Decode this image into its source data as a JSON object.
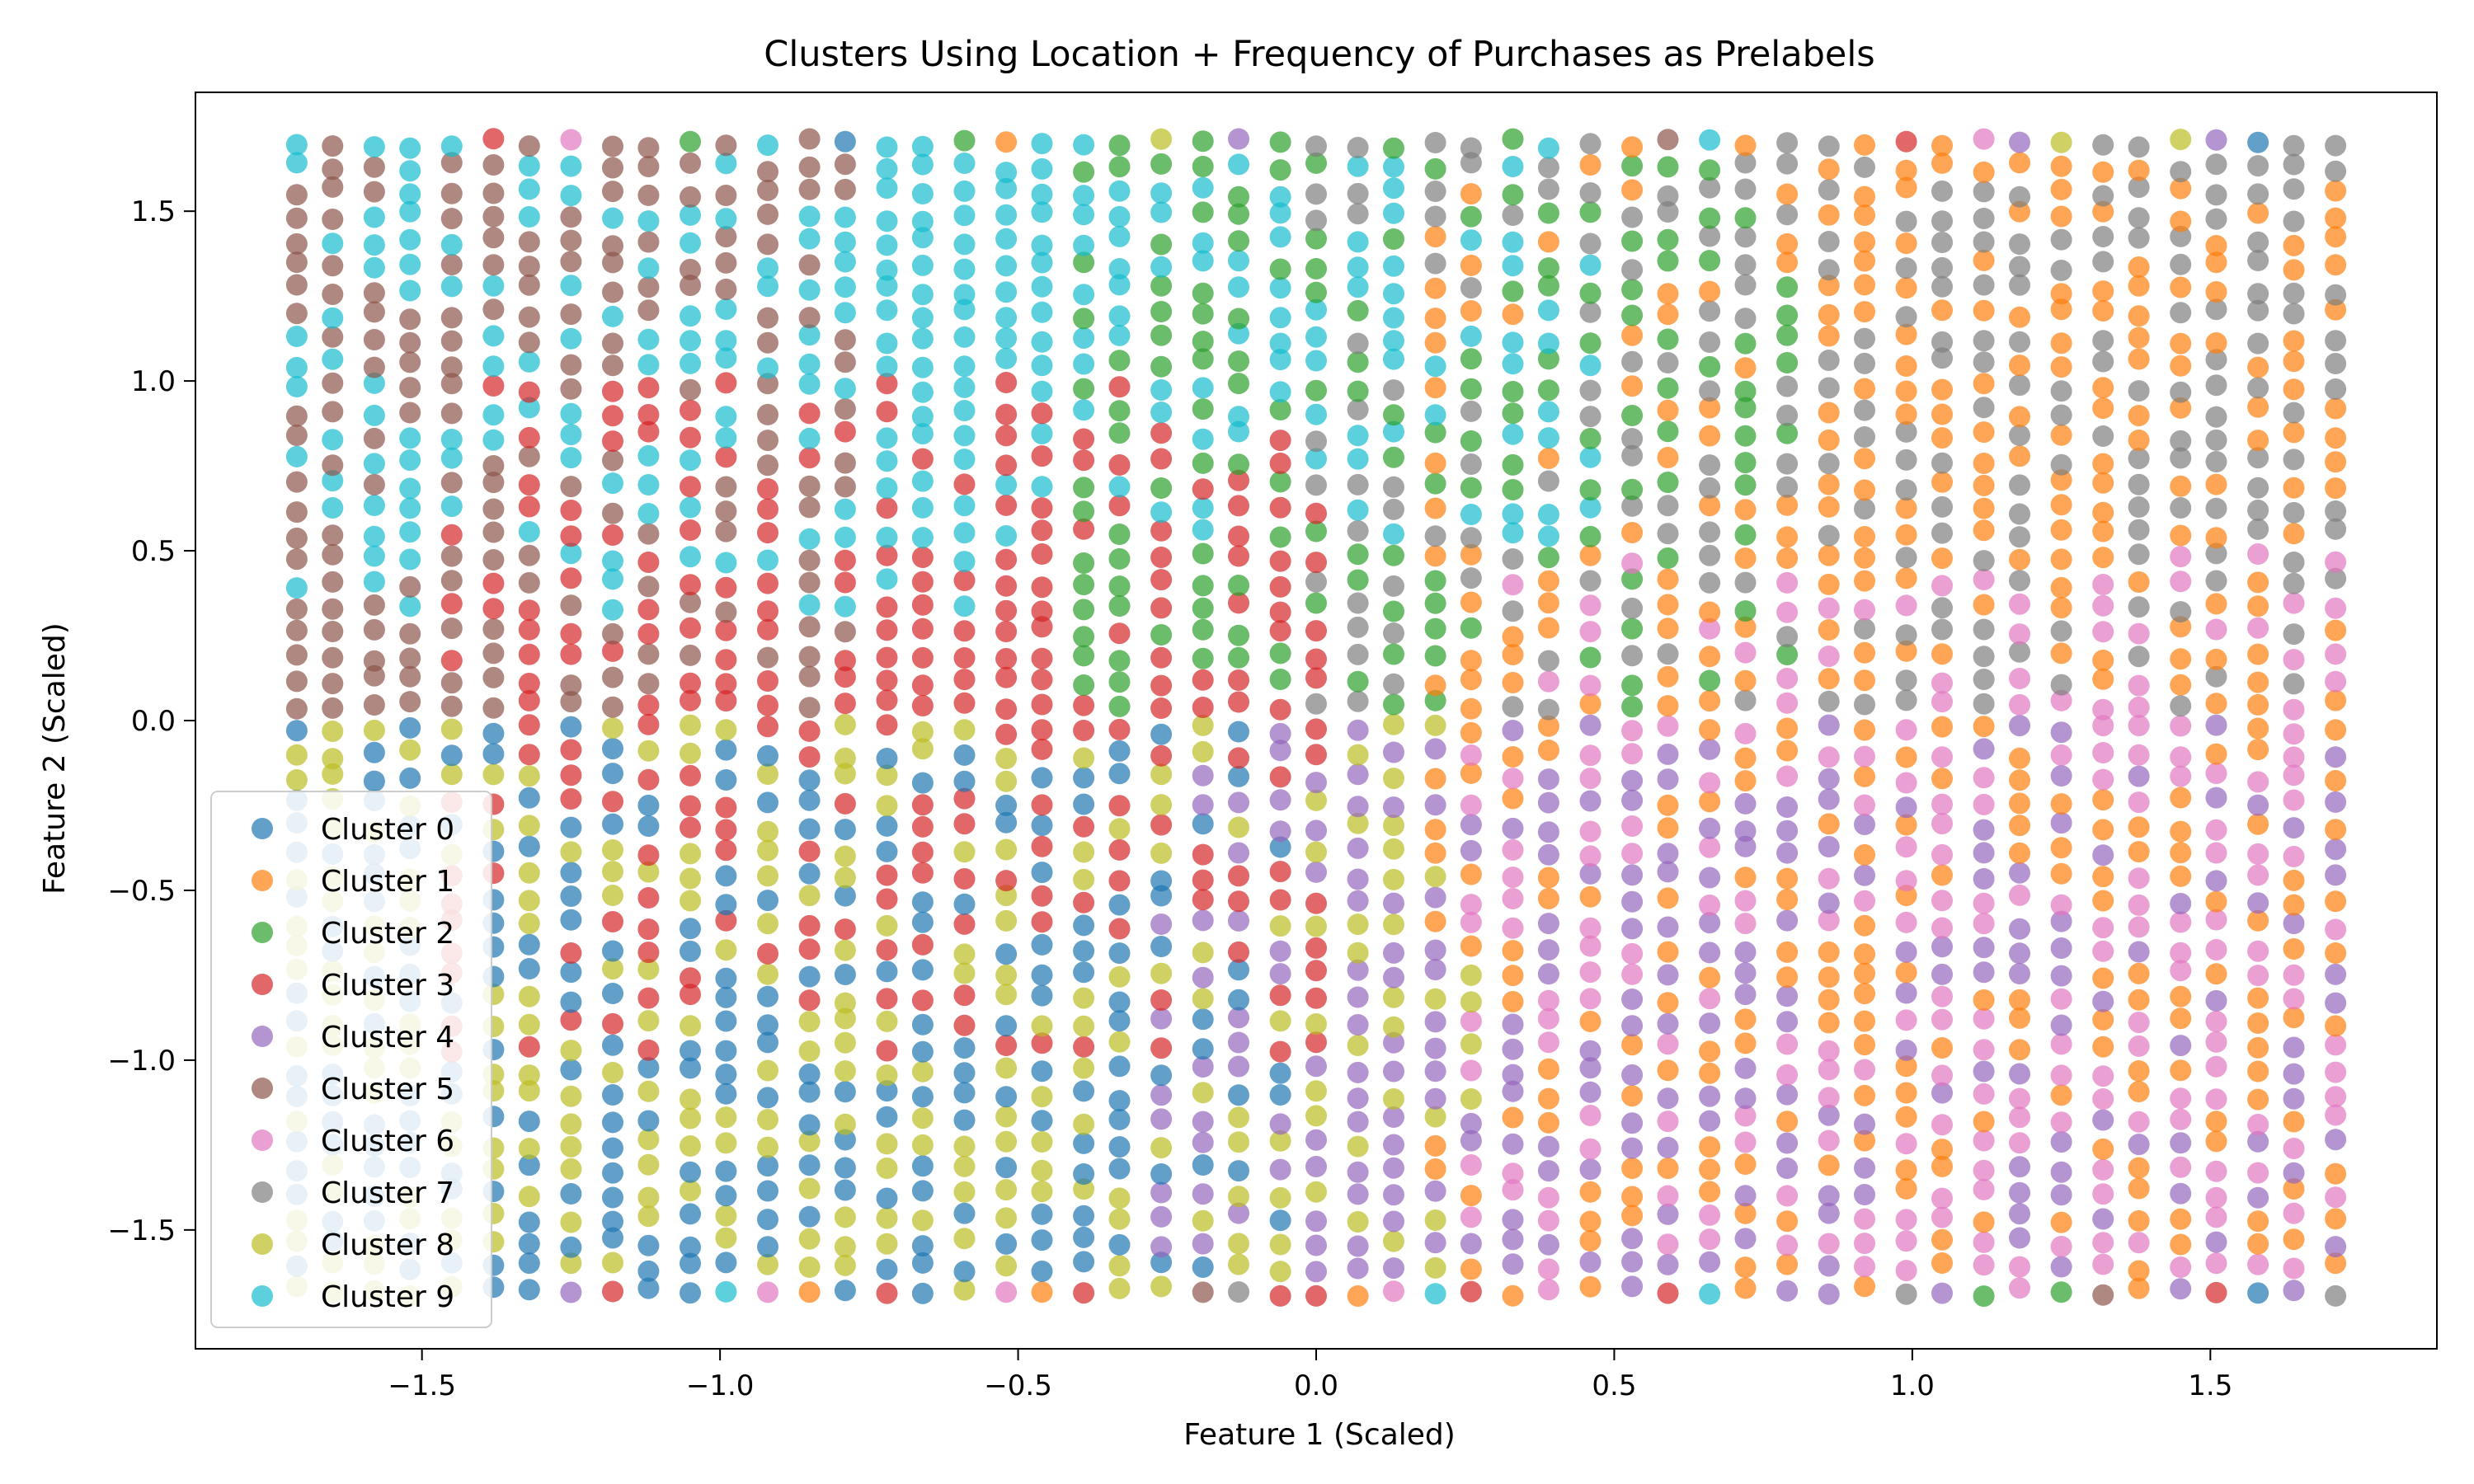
{
  "chart_data": {
    "type": "scatter",
    "title": "Clusters Using Location + Frequency of Purchases as Prelabels",
    "xlabel": "Feature 1 (Scaled)",
    "ylabel": "Feature 2 (Scaled)",
    "xlim": [
      -1.88,
      1.88
    ],
    "ylim": [
      -1.85,
      1.85
    ],
    "xticks": [
      -1.5,
      -1.0,
      -0.5,
      0.0,
      0.5,
      1.0,
      1.5
    ],
    "yticks": [
      -1.5,
      -1.0,
      -0.5,
      0.0,
      0.5,
      1.0,
      1.5
    ],
    "xtick_labels": [
      "−1.5",
      "−1.0",
      "−0.5",
      "0.0",
      "0.5",
      "1.0",
      "1.5"
    ],
    "ytick_labels": [
      "−1.5",
      "−1.0",
      "−0.5",
      "0.0",
      "0.5",
      "1.0",
      "1.5"
    ],
    "grid": false,
    "legend_position": "lower-left",
    "x_columns": [
      -1.71,
      -1.65,
      -1.58,
      -1.52,
      -1.45,
      -1.38,
      -1.32,
      -1.25,
      -1.18,
      -1.12,
      -1.05,
      -0.99,
      -0.92,
      -0.85,
      -0.79,
      -0.72,
      -0.66,
      -0.59,
      -0.52,
      -0.46,
      -0.39,
      -0.33,
      -0.26,
      -0.19,
      -0.13,
      -0.06,
      0.0,
      0.07,
      0.13,
      0.2,
      0.26,
      0.33,
      0.39,
      0.46,
      0.53,
      0.59,
      0.66,
      0.72,
      0.79,
      0.86,
      0.92,
      0.99,
      1.05,
      1.12,
      1.18,
      1.25,
      1.32,
      1.38,
      1.45,
      1.51,
      1.58,
      1.64,
      1.71
    ],
    "y_range": [
      -1.68,
      1.7
    ],
    "points_per_column": 48,
    "series": [
      {
        "name": "Cluster 0",
        "color": "#1f77b4"
      },
      {
        "name": "Cluster 1",
        "color": "#ff7f0e"
      },
      {
        "name": "Cluster 2",
        "color": "#2ca02c"
      },
      {
        "name": "Cluster 3",
        "color": "#d62728"
      },
      {
        "name": "Cluster 4",
        "color": "#9467bd"
      },
      {
        "name": "Cluster 5",
        "color": "#8c564b"
      },
      {
        "name": "Cluster 6",
        "color": "#e377c2"
      },
      {
        "name": "Cluster 7",
        "color": "#7f7f7f"
      },
      {
        "name": "Cluster 8",
        "color": "#bcbd22"
      },
      {
        "name": "Cluster 9",
        "color": "#17becf"
      }
    ],
    "cluster_regions": [
      {
        "cluster": 9,
        "x": [
          -1.72,
          -0.55
        ],
        "y": [
          0.3,
          1.7
        ]
      },
      {
        "cluster": 5,
        "x": [
          -1.72,
          -0.75
        ],
        "y": [
          0.0,
          1.7
        ]
      },
      {
        "cluster": 3,
        "x": [
          -1.45,
          0.0
        ],
        "y": [
          -1.0,
          1.0
        ]
      },
      {
        "cluster": 0,
        "x": [
          -1.72,
          -0.05
        ],
        "y": [
          -1.68,
          0.0
        ]
      },
      {
        "cluster": 8,
        "x": [
          -1.72,
          0.3
        ],
        "y": [
          -1.68,
          0.0
        ]
      },
      {
        "cluster": 9,
        "x": [
          -0.6,
          0.5
        ],
        "y": [
          0.5,
          1.7
        ]
      },
      {
        "cluster": 2,
        "x": [
          -0.45,
          0.85
        ],
        "y": [
          0.0,
          1.7
        ]
      },
      {
        "cluster": 7,
        "x": [
          0.0,
          1.72
        ],
        "y": [
          0.0,
          1.7
        ]
      },
      {
        "cluster": 4,
        "x": [
          -0.3,
          1.72
        ],
        "y": [
          -1.68,
          0.0
        ]
      },
      {
        "cluster": 1,
        "x": [
          0.2,
          1.72
        ],
        "y": [
          -1.68,
          1.7
        ]
      },
      {
        "cluster": 6,
        "x": [
          0.25,
          1.72
        ],
        "y": [
          -1.68,
          0.5
        ]
      }
    ]
  }
}
